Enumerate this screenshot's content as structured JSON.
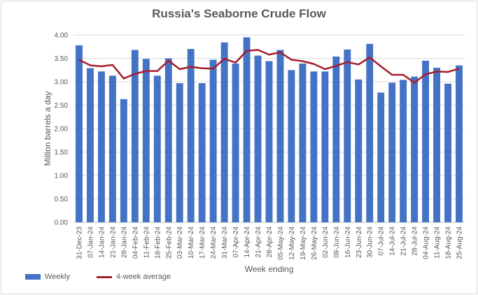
{
  "chart_data": {
    "type": "bar",
    "title": "Russia's Seaborne Crude Flow",
    "xlabel": "Week ending",
    "ylabel": "Million barrels a day",
    "ylim": [
      0,
      4
    ],
    "yticks": [
      "0.00",
      "0.50",
      "1.00",
      "1.50",
      "2.00",
      "2.50",
      "3.00",
      "3.50",
      "4.00"
    ],
    "ytick_values": [
      0,
      0.5,
      1,
      1.5,
      2,
      2.5,
      3,
      3.5,
      4
    ],
    "categories": [
      "31-Dec-23",
      "07-Jan-24",
      "14-Jan-24",
      "21-Jan-24",
      "28-Jan-24",
      "04-Feb-24",
      "11-Feb-24",
      "18-Feb-24",
      "25-Feb-24",
      "03-Mar-24",
      "10-Mar-24",
      "17-Mar-24",
      "24-Mar-24",
      "31-Mar-24",
      "07-Apr-24",
      "14-Apr-24",
      "21-Apr-24",
      "28-Apr-24",
      "05-May-24",
      "12-May-24",
      "19-May-24",
      "26-May-24",
      "02-Jun-24",
      "09-Jun-24",
      "16-Jun-24",
      "23-Jun-24",
      "30-Jun-24",
      "07-Jul-24",
      "14-Jul-24",
      "21-Jul-24",
      "28-Jul-24",
      "04-Aug-24",
      "11-Aug-24",
      "18-Aug-24",
      "25-Aug-24"
    ],
    "series": [
      {
        "name": "Weekly",
        "kind": "bar",
        "color": "#4472c4",
        "values": [
          3.78,
          3.29,
          3.22,
          3.13,
          2.63,
          3.68,
          3.49,
          3.13,
          3.5,
          2.97,
          3.7,
          2.97,
          3.47,
          3.84,
          3.39,
          3.95,
          3.56,
          3.44,
          3.68,
          3.25,
          3.39,
          3.22,
          3.22,
          3.54,
          3.69,
          3.05,
          3.81,
          2.77,
          2.98,
          3.04,
          3.11,
          3.45,
          3.3,
          2.96,
          3.35
        ]
      },
      {
        "name": "4-week average",
        "kind": "line",
        "color": "#a51d2d",
        "values": [
          3.47,
          3.35,
          3.33,
          3.36,
          3.07,
          3.17,
          3.23,
          3.23,
          3.45,
          3.27,
          3.32,
          3.29,
          3.28,
          3.49,
          3.41,
          3.66,
          3.68,
          3.58,
          3.63,
          3.47,
          3.44,
          3.38,
          3.27,
          3.34,
          3.42,
          3.37,
          3.52,
          3.33,
          3.15,
          3.15,
          2.98,
          3.16,
          3.22,
          3.21,
          3.28
        ]
      }
    ]
  }
}
